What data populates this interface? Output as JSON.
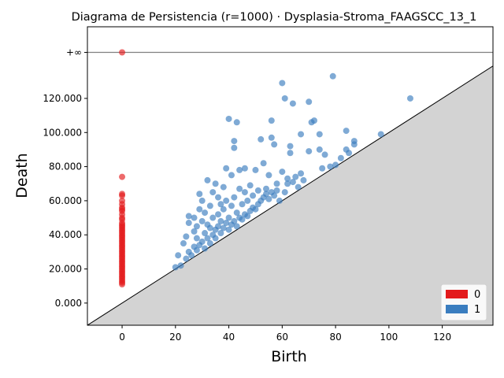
{
  "chart_data": {
    "type": "scatter",
    "title": "Diagrama de Persistencia (r=1000) · Dysplasia-Stroma_FAAGSCC_13_1",
    "xlabel": "Birth",
    "ylabel": "Death",
    "xlim": [
      -13,
      139
    ],
    "ylim": [
      -13000,
      162000
    ],
    "infinity_value": 147000,
    "infinity_label": "+∞",
    "x_ticks": [
      0,
      20,
      40,
      60,
      80,
      100,
      120
    ],
    "x_tick_labels": [
      "0",
      "20",
      "40",
      "60",
      "80",
      "100",
      "120"
    ],
    "y_ticks": [
      0,
      20000,
      40000,
      60000,
      80000,
      100000,
      120000
    ],
    "y_tick_labels": [
      "0.000",
      "20.000",
      "40.000",
      "60.000",
      "80.000",
      "100.000",
      "120.000"
    ],
    "diagonal": true,
    "legend_position": "bottom-right",
    "colors": {
      "h0": "#e31a1c",
      "h1": "#3a7dbf",
      "diagonal_fill": "#d3d3d3"
    },
    "series": [
      {
        "name": "0",
        "color": "#e31a1c",
        "points": [
          [
            0,
            147000
          ],
          [
            0,
            74000
          ],
          [
            0,
            64000
          ],
          [
            0,
            63000
          ],
          [
            0,
            60000
          ],
          [
            0,
            58000
          ],
          [
            0,
            56000
          ],
          [
            0,
            55000
          ],
          [
            0,
            54000
          ],
          [
            0,
            52000
          ],
          [
            0,
            50000
          ],
          [
            0,
            49000
          ],
          [
            0,
            47000
          ],
          [
            0,
            46000
          ],
          [
            0,
            45000
          ],
          [
            0,
            44000
          ],
          [
            0,
            43000
          ],
          [
            0,
            42000
          ],
          [
            0,
            41000
          ],
          [
            0,
            40000
          ],
          [
            0,
            39000
          ],
          [
            0,
            38000
          ],
          [
            0,
            37000
          ],
          [
            0,
            36000
          ],
          [
            0,
            35000
          ],
          [
            0,
            34000
          ],
          [
            0,
            33000
          ],
          [
            0,
            32000
          ],
          [
            0,
            31000
          ],
          [
            0,
            30000
          ],
          [
            0,
            29000
          ],
          [
            0,
            28000
          ],
          [
            0,
            27000
          ],
          [
            0,
            26000
          ],
          [
            0,
            25000
          ],
          [
            0,
            24000
          ],
          [
            0,
            23000
          ],
          [
            0,
            22000
          ],
          [
            0,
            21000
          ],
          [
            0,
            20000
          ],
          [
            0,
            19000
          ],
          [
            0,
            18000
          ],
          [
            0,
            17000
          ],
          [
            0,
            16000
          ],
          [
            0,
            15000
          ],
          [
            0,
            14000
          ],
          [
            0,
            13000
          ],
          [
            0,
            12000
          ],
          [
            0,
            11000
          ]
        ]
      },
      {
        "name": "1",
        "color": "#3a7dbf",
        "points": [
          [
            20,
            21000
          ],
          [
            21,
            28000
          ],
          [
            22,
            22000
          ],
          [
            23,
            35000
          ],
          [
            24,
            26000
          ],
          [
            24,
            39000
          ],
          [
            25,
            30000
          ],
          [
            25,
            47000
          ],
          [
            25,
            51000
          ],
          [
            26,
            28000
          ],
          [
            27,
            33000
          ],
          [
            27,
            42000
          ],
          [
            27,
            50000
          ],
          [
            28,
            31000
          ],
          [
            28,
            38000
          ],
          [
            28,
            45000
          ],
          [
            29,
            34000
          ],
          [
            29,
            55000
          ],
          [
            29,
            64000
          ],
          [
            30,
            36000
          ],
          [
            30,
            48000
          ],
          [
            30,
            60000
          ],
          [
            31,
            32000
          ],
          [
            31,
            41000
          ],
          [
            31,
            53000
          ],
          [
            32,
            38000
          ],
          [
            32,
            46000
          ],
          [
            32,
            72000
          ],
          [
            33,
            35000
          ],
          [
            33,
            44000
          ],
          [
            33,
            57000
          ],
          [
            34,
            40000
          ],
          [
            34,
            50000
          ],
          [
            34,
            65000
          ],
          [
            35,
            38000
          ],
          [
            35,
            43000
          ],
          [
            35,
            70000
          ],
          [
            36,
            45000
          ],
          [
            36,
            52000
          ],
          [
            36,
            62000
          ],
          [
            37,
            41000
          ],
          [
            37,
            48000
          ],
          [
            37,
            58000
          ],
          [
            38,
            44000
          ],
          [
            38,
            55000
          ],
          [
            38,
            68000
          ],
          [
            39,
            47000
          ],
          [
            39,
            60000
          ],
          [
            39,
            79000
          ],
          [
            40,
            43000
          ],
          [
            40,
            50000
          ],
          [
            40,
            108000
          ],
          [
            41,
            46000
          ],
          [
            41,
            57000
          ],
          [
            41,
            75000
          ],
          [
            42,
            48000
          ],
          [
            42,
            62000
          ],
          [
            42,
            91000
          ],
          [
            42,
            95000
          ],
          [
            43,
            45000
          ],
          [
            43,
            53000
          ],
          [
            43,
            106000
          ],
          [
            44,
            50000
          ],
          [
            44,
            67000
          ],
          [
            44,
            78000
          ],
          [
            45,
            49000
          ],
          [
            45,
            58000
          ],
          [
            46,
            52000
          ],
          [
            46,
            65000
          ],
          [
            46,
            79000
          ],
          [
            47,
            51000
          ],
          [
            47,
            60000
          ],
          [
            48,
            54000
          ],
          [
            48,
            69000
          ],
          [
            49,
            56000
          ],
          [
            49,
            63000
          ],
          [
            50,
            55000
          ],
          [
            50,
            78000
          ],
          [
            51,
            58000
          ],
          [
            51,
            66000
          ],
          [
            52,
            60000
          ],
          [
            52,
            96000
          ],
          [
            53,
            62000
          ],
          [
            53,
            82000
          ],
          [
            54,
            64000
          ],
          [
            54,
            67000
          ],
          [
            55,
            61000
          ],
          [
            55,
            75000
          ],
          [
            56,
            65000
          ],
          [
            56,
            97000
          ],
          [
            56,
            107000
          ],
          [
            57,
            63000
          ],
          [
            57,
            93000
          ],
          [
            58,
            66000
          ],
          [
            58,
            70000
          ],
          [
            59,
            60000
          ],
          [
            60,
            77000
          ],
          [
            60,
            129000
          ],
          [
            61,
            65000
          ],
          [
            61,
            120000
          ],
          [
            62,
            70000
          ],
          [
            62,
            73000
          ],
          [
            63,
            88000
          ],
          [
            63,
            92000
          ],
          [
            64,
            71000
          ],
          [
            64,
            117000
          ],
          [
            65,
            74000
          ],
          [
            66,
            68000
          ],
          [
            67,
            99000
          ],
          [
            67,
            76000
          ],
          [
            68,
            72000
          ],
          [
            70,
            89000
          ],
          [
            70,
            118000
          ],
          [
            71,
            106000
          ],
          [
            72,
            107000
          ],
          [
            74,
            90000
          ],
          [
            74,
            99000
          ],
          [
            75,
            79000
          ],
          [
            76,
            87000
          ],
          [
            78,
            80000
          ],
          [
            79,
            133000
          ],
          [
            80,
            81000
          ],
          [
            82,
            85000
          ],
          [
            84,
            90000
          ],
          [
            84,
            101000
          ],
          [
            85,
            88000
          ],
          [
            87,
            95000
          ],
          [
            87,
            93000
          ],
          [
            97,
            99000
          ],
          [
            108,
            120000
          ]
        ]
      }
    ]
  }
}
